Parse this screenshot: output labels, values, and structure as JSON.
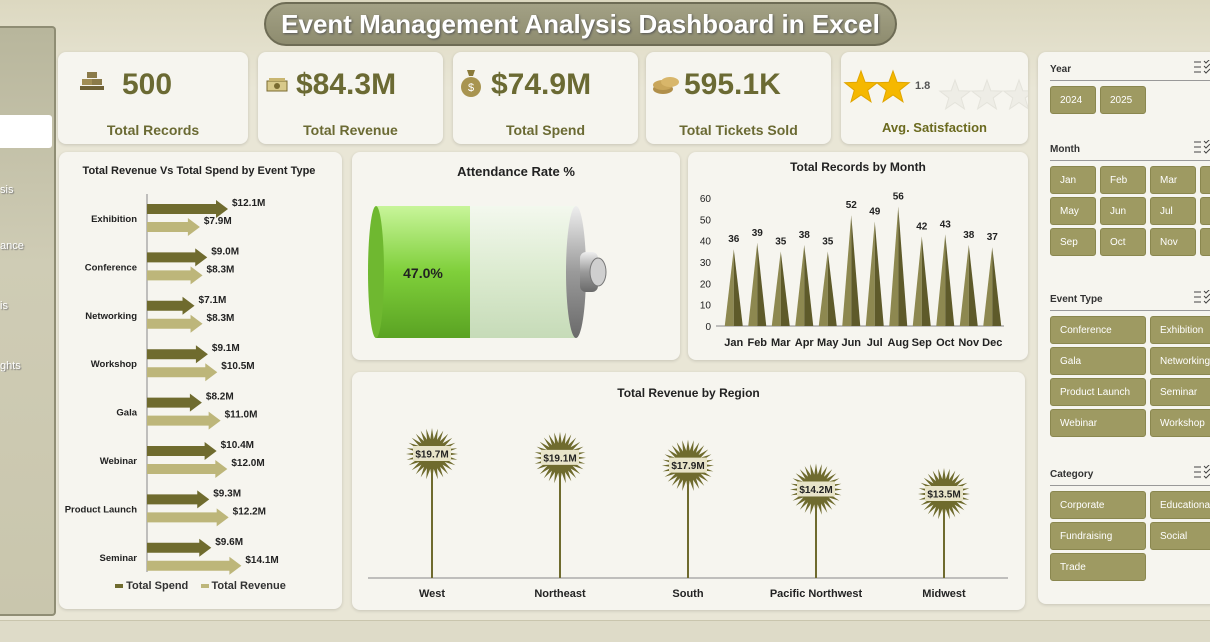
{
  "title": "Event Management Analysis Dashboard in Excel",
  "sidenav": {
    "items": [
      {
        "label": "sis"
      },
      {
        "label": "ance"
      },
      {
        "label": "is"
      },
      {
        "label": "ghts"
      }
    ]
  },
  "kpis": [
    {
      "value": "500",
      "label": "Total Records",
      "icon": "bricks-icon"
    },
    {
      "value": "$84.3M",
      "label": "Total Revenue",
      "icon": "money-bill-icon"
    },
    {
      "value": "$74.9M",
      "label": "Total Spend",
      "icon": "money-bag-icon"
    },
    {
      "value": "595.1K",
      "label": "Total Tickets Sold",
      "icon": "coins-icon"
    },
    {
      "value": "1.8",
      "label": "Avg. Satisfaction",
      "icon": "star-icon",
      "stars": 1.8,
      "max_stars": 5
    }
  ],
  "colors": {
    "dark_olive": "#6f6b2e",
    "light_olive": "#bdb67a",
    "accent_text": "#6b6a33",
    "battery_green": "#8bd64a",
    "slicer": "#9e9a62"
  },
  "chart_data": [
    {
      "type": "bar",
      "orientation": "horizontal",
      "title": "Total Revenue Vs Total Spend by Event Type",
      "categories": [
        "Exhibition",
        "Conference",
        "Networking",
        "Workshop",
        "Gala",
        "Webinar",
        "Product Launch",
        "Seminar"
      ],
      "series": [
        {
          "name": "Total Spend",
          "values": [
            12.1,
            9.0,
            7.1,
            9.1,
            8.2,
            10.4,
            9.3,
            9.6
          ],
          "labels": [
            "$12.1M",
            "$9.0M",
            "$7.1M",
            "$9.1M",
            "$8.2M",
            "$10.4M",
            "$9.3M",
            "$9.6M"
          ]
        },
        {
          "name": "Total Revenue",
          "values": [
            7.9,
            8.3,
            8.3,
            10.5,
            11.0,
            12.0,
            12.2,
            14.1
          ],
          "labels": [
            "$7.9M",
            "$8.3M",
            "$8.3M",
            "$10.5M",
            "$11.0M",
            "$12.0M",
            "$12.2M",
            "$14.1M"
          ]
        }
      ],
      "legend": [
        "Total Spend",
        "Total Revenue"
      ],
      "legend_position": "bottom"
    },
    {
      "type": "gauge",
      "title": "Attendance Rate %",
      "value": 0.47,
      "label": "47.0%"
    },
    {
      "type": "bar",
      "title": "Total Records by Month",
      "categories": [
        "Jan",
        "Feb",
        "Mar",
        "Apr",
        "May",
        "Jun",
        "Jul",
        "Aug",
        "Sep",
        "Oct",
        "Nov",
        "Dec"
      ],
      "values": [
        36,
        39,
        35,
        38,
        35,
        52,
        49,
        56,
        42,
        43,
        38,
        37
      ],
      "ylim": [
        0,
        60
      ],
      "yticks": [
        0,
        10,
        20,
        30,
        40,
        50,
        60
      ]
    },
    {
      "type": "bar",
      "title": "Total Revenue by Region",
      "categories": [
        "West",
        "Northeast",
        "South",
        "Pacific Northwest",
        "Midwest"
      ],
      "values": [
        19.7,
        19.1,
        17.9,
        14.2,
        13.5
      ],
      "labels": [
        "$19.7M",
        "$19.1M",
        "$17.9M",
        "$14.2M",
        "$13.5M"
      ]
    }
  ],
  "slicers": [
    {
      "header": "Year",
      "items": [
        "2024",
        "2025"
      ]
    },
    {
      "header": "Month",
      "items": [
        "Jan",
        "Feb",
        "Mar",
        "May",
        "Jun",
        "Jul",
        "Sep",
        "Oct",
        "Nov"
      ]
    },
    {
      "header": "Event Type",
      "items": [
        "Conference",
        "Exhibition",
        "Gala",
        "Networking",
        "Product Launch",
        "Seminar",
        "Webinar",
        "Workshop"
      ]
    },
    {
      "header": "Category",
      "items": [
        "Corporate",
        "Educationa",
        "Fundraising",
        "Social",
        "Trade"
      ]
    }
  ]
}
